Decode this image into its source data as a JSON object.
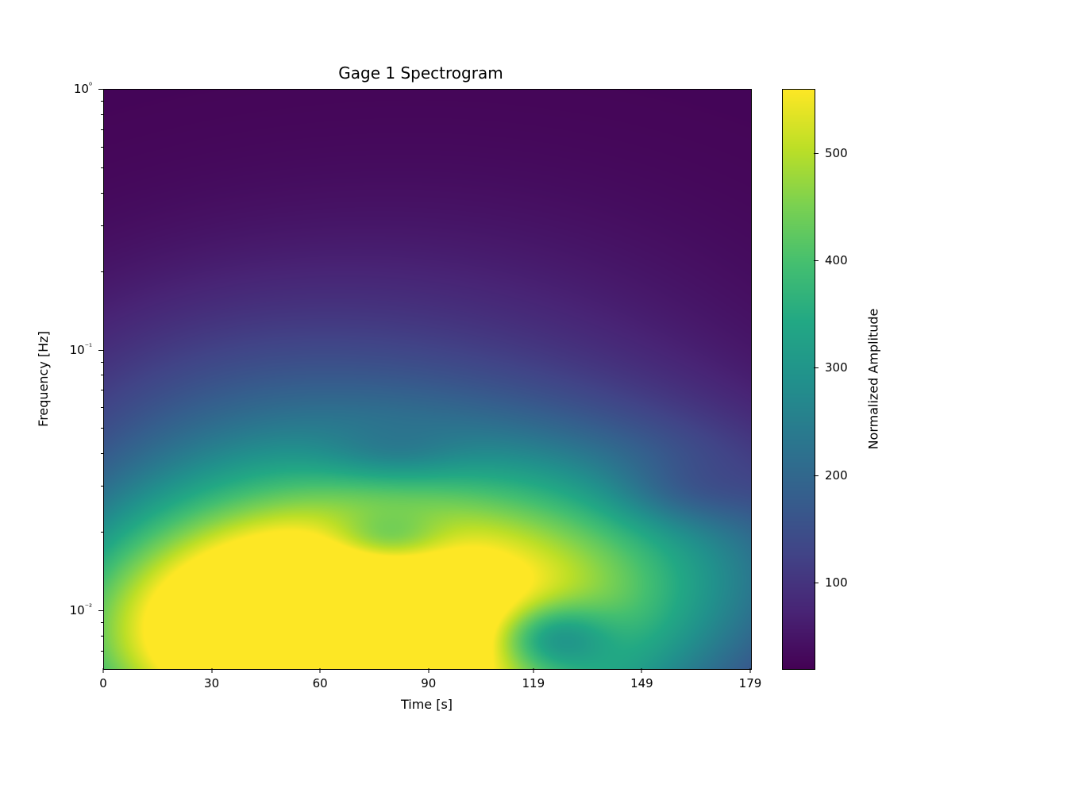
{
  "chart": {
    "type": "spectrogram",
    "title": "Gage 1 Spectrogram",
    "title_fontsize": 20,
    "xlabel": "Time [s]",
    "ylabel": "Frequency [Hz]",
    "cbar_label": "Normalized Amplitude",
    "label_fontsize": 16,
    "tick_fontsize": 15,
    "background_color": "#ffffff",
    "frame_color": "#000000",
    "xlim": [
      0,
      179
    ],
    "xticks": [
      0,
      30,
      60,
      90,
      119,
      149,
      179
    ],
    "xtick_labels": [
      "0",
      "30",
      "60",
      "90",
      "119",
      "149",
      "179"
    ],
    "yscale": "log",
    "ylim": [
      0.006,
      1.0
    ],
    "ymajor_ticks": [
      0.01,
      0.1,
      1.0
    ],
    "ymajor_labels": [
      "10⁻²",
      "10⁻¹",
      "10⁰"
    ],
    "yminor_ticks": [
      0.007,
      0.008,
      0.009,
      0.02,
      0.03,
      0.04,
      0.05,
      0.06,
      0.07,
      0.08,
      0.09,
      0.2,
      0.3,
      0.4,
      0.5,
      0.6,
      0.7,
      0.8,
      0.9
    ],
    "cbar_range": [
      20,
      560
    ],
    "cbar_ticks": [
      100,
      200,
      300,
      400,
      500
    ],
    "cbar_tick_labels": [
      "100",
      "200",
      "300",
      "400",
      "500"
    ],
    "colormap": "viridis",
    "colormap_stops": [
      [
        0.0,
        "#440154"
      ],
      [
        0.1,
        "#482475"
      ],
      [
        0.2,
        "#414487"
      ],
      [
        0.3,
        "#355f8d"
      ],
      [
        0.4,
        "#2a788e"
      ],
      [
        0.5,
        "#21918c"
      ],
      [
        0.6,
        "#22a884"
      ],
      [
        0.7,
        "#44bf70"
      ],
      [
        0.8,
        "#7ad151"
      ],
      [
        0.9,
        "#bddf26"
      ],
      [
        1.0,
        "#fde725"
      ]
    ],
    "spectrogram_blobs": [
      {
        "type": "base",
        "value": 25
      },
      {
        "type": "gauss",
        "t": 70,
        "logf": -2.22,
        "st": 55,
        "sf": 0.35,
        "amp": 530
      },
      {
        "type": "gauss",
        "t": 40,
        "logf": -2.0,
        "st": 40,
        "sf": 0.3,
        "amp": 280
      },
      {
        "type": "gauss",
        "t": 100,
        "logf": -1.7,
        "st": 55,
        "sf": 0.35,
        "amp": 200
      },
      {
        "type": "gauss",
        "t": 145,
        "logf": -1.85,
        "st": 45,
        "sf": 0.3,
        "amp": 130
      },
      {
        "type": "gauss",
        "t": 30,
        "logf": -1.4,
        "st": 45,
        "sf": 0.4,
        "amp": 90
      },
      {
        "type": "gauss",
        "t": 90,
        "logf": -1.1,
        "st": 60,
        "sf": 0.45,
        "amp": 55
      },
      {
        "type": "dip",
        "t": 123,
        "logf": -2.1,
        "st": 12,
        "sf": 0.1,
        "amp": 230
      },
      {
        "type": "dip",
        "t": 78,
        "logf": -1.73,
        "st": 12,
        "sf": 0.08,
        "amp": 150
      },
      {
        "type": "dip",
        "t": 80,
        "logf": -1.4,
        "st": 14,
        "sf": 0.08,
        "amp": 60
      },
      {
        "type": "dip",
        "t": 160,
        "logf": -1.55,
        "st": 15,
        "sf": 0.1,
        "amp": 60
      }
    ]
  }
}
